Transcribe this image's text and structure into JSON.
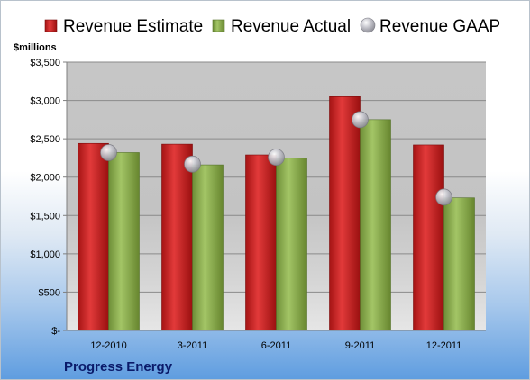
{
  "chart_data": {
    "type": "bar",
    "unit_label": "$millions",
    "company": "Progress Energy",
    "categories": [
      "12-2010",
      "3-2011",
      "6-2011",
      "9-2011",
      "12-2011"
    ],
    "series": [
      {
        "name": "Revenue Estimate",
        "kind": "bar",
        "color": "#cc1f1f",
        "values": [
          2440,
          2430,
          2290,
          3050,
          2420
        ]
      },
      {
        "name": "Revenue Actual",
        "kind": "bar",
        "color": "#8cae4e",
        "values": [
          2320,
          2160,
          2250,
          2750,
          1730
        ]
      },
      {
        "name": "Revenue GAAP",
        "kind": "marker",
        "color": "#b8b8c0",
        "values": [
          2320,
          2170,
          2260,
          2750,
          1740
        ]
      }
    ],
    "ylim": [
      0,
      3500
    ],
    "yticks": [
      0,
      500,
      1000,
      1500,
      2000,
      2500,
      3000,
      3500
    ],
    "ytick_labels": [
      "$-",
      "$500",
      "$1,000",
      "$1,500",
      "$2,000",
      "$2,500",
      "$3,000",
      "$3,500"
    ],
    "grid": true,
    "legend_position": "top"
  }
}
